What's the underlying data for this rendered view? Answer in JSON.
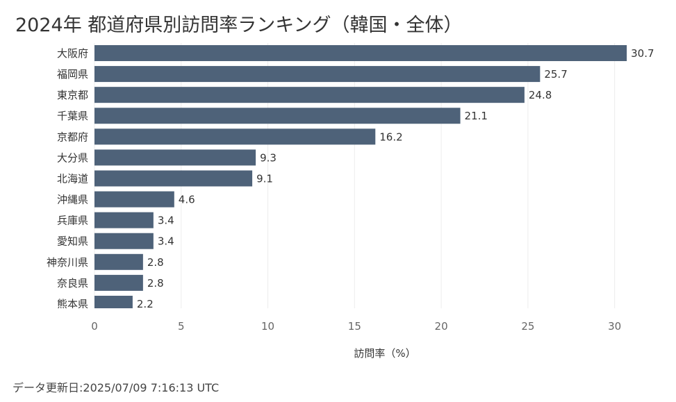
{
  "page": {
    "title": "2024年 都道府県別訪問率ランキング（韓国・全体）",
    "footer": "データ更新日:2025/07/09 7:16:13 UTC"
  },
  "colors": {
    "bar": "#4e6279",
    "grid": "#ececec",
    "axis_text": "#666666",
    "label_text": "#333333"
  },
  "chart_data": {
    "type": "bar",
    "orientation": "horizontal",
    "title": "2024年 都道府県別訪問率ランキング（韓国・全体）",
    "xlabel": "訪問率（%）",
    "ylabel": "",
    "xlim": [
      0,
      33.5
    ],
    "xticks": [
      0,
      5,
      10,
      15,
      20,
      25,
      30
    ],
    "grid": true,
    "categories": [
      "大阪府",
      "福岡県",
      "東京都",
      "千葉県",
      "京都府",
      "大分県",
      "北海道",
      "沖縄県",
      "兵庫県",
      "愛知県",
      "神奈川県",
      "奈良県",
      "熊本県"
    ],
    "values": [
      30.7,
      25.7,
      24.8,
      21.1,
      16.2,
      9.3,
      9.1,
      4.6,
      3.4,
      3.4,
      2.8,
      2.8,
      2.2
    ],
    "value_labels": [
      "30.7",
      "25.7",
      "24.8",
      "21.1",
      "16.2",
      "9.3",
      "9.1",
      "4.6",
      "3.4",
      "3.4",
      "2.8",
      "2.8",
      "2.2"
    ]
  }
}
